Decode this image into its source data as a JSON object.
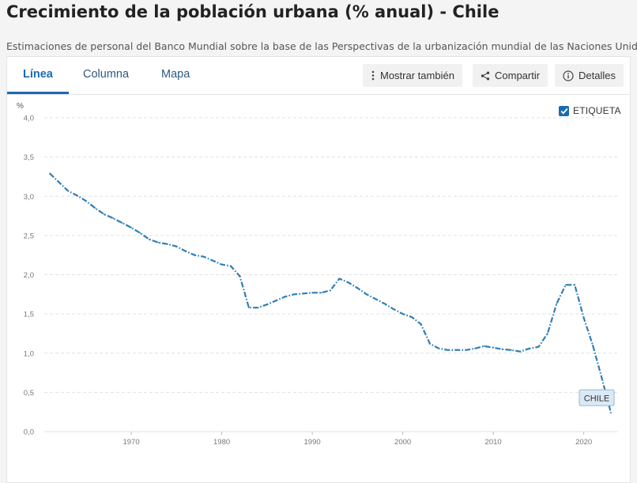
{
  "page": {
    "title": "Crecimiento de la población urbana (% anual) - Chile",
    "subtitle": "Estimaciones de personal del Banco Mundial sobre la base de las Perspectivas de la urbanización mundial de las Naciones Unidas."
  },
  "tabs": [
    {
      "label": "Línea",
      "active": true
    },
    {
      "label": "Columna",
      "active": false
    },
    {
      "label": "Mapa",
      "active": false
    }
  ],
  "toolbar": {
    "more_label": "Mostrar también",
    "share_label": "Compartir",
    "details_label": "Detalles"
  },
  "label_toggle": {
    "label": "ETIQUETA",
    "checked": true
  },
  "colors": {
    "accent": "#1b6ab0",
    "line": "#2f7fb5",
    "grid": "#e0e0e0"
  },
  "chart_data": {
    "type": "line",
    "ylabel": "%",
    "xlabel": "",
    "xlim": [
      1961,
      2023
    ],
    "ylim": [
      0,
      4
    ],
    "x_ticks": [
      1970,
      1980,
      1990,
      2000,
      2010,
      2020
    ],
    "y_ticks": [
      "0,0",
      "0,5",
      "1,0",
      "1,5",
      "2,0",
      "2,5",
      "3,0",
      "3,5",
      "4,0"
    ],
    "grid": true,
    "series": [
      {
        "name": "CHILE",
        "x": [
          1961,
          1962,
          1963,
          1964,
          1965,
          1966,
          1967,
          1968,
          1969,
          1970,
          1971,
          1972,
          1973,
          1974,
          1975,
          1976,
          1977,
          1978,
          1979,
          1980,
          1981,
          1982,
          1983,
          1984,
          1985,
          1986,
          1987,
          1988,
          1989,
          1990,
          1991,
          1992,
          1993,
          1994,
          1995,
          1996,
          1997,
          1998,
          1999,
          2000,
          2001,
          2002,
          2003,
          2004,
          2005,
          2006,
          2007,
          2008,
          2009,
          2010,
          2011,
          2012,
          2013,
          2014,
          2015,
          2016,
          2017,
          2018,
          2019,
          2020,
          2021,
          2022,
          2023
        ],
        "values": [
          3.29,
          3.18,
          3.07,
          3.01,
          2.94,
          2.85,
          2.77,
          2.72,
          2.66,
          2.6,
          2.53,
          2.45,
          2.41,
          2.39,
          2.36,
          2.3,
          2.25,
          2.23,
          2.18,
          2.13,
          2.11,
          1.98,
          1.58,
          1.58,
          1.62,
          1.67,
          1.72,
          1.75,
          1.76,
          1.77,
          1.77,
          1.8,
          1.95,
          1.9,
          1.83,
          1.75,
          1.69,
          1.63,
          1.56,
          1.5,
          1.46,
          1.37,
          1.12,
          1.06,
          1.04,
          1.04,
          1.04,
          1.06,
          1.09,
          1.07,
          1.05,
          1.04,
          1.02,
          1.06,
          1.08,
          1.25,
          1.63,
          1.87,
          1.87,
          1.45,
          1.1,
          0.68,
          0.24
        ]
      }
    ],
    "annotation": "CHILE"
  }
}
